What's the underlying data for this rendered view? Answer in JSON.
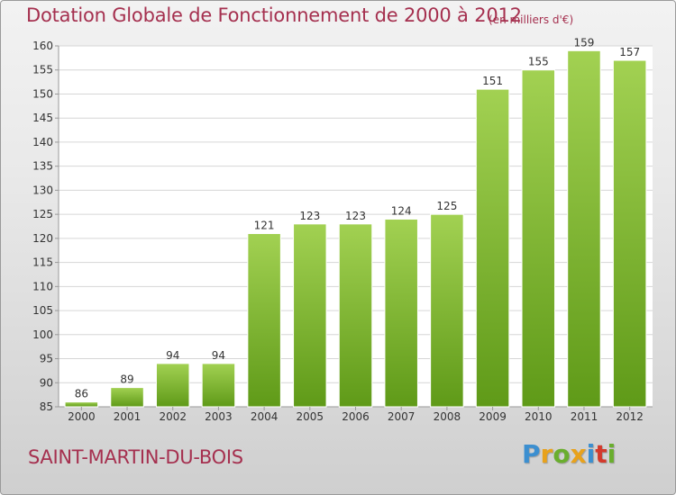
{
  "header": {
    "title": "Dotation Globale de Fonctionnement de 2000 à 2012",
    "unit": "(en milliers d'€)"
  },
  "footer": {
    "commune": "SAINT-MARTIN-DU-BOIS",
    "logo_text": "Proxiti",
    "logo_letters": [
      {
        "char": "P",
        "color": "#3c8fd0"
      },
      {
        "char": "r",
        "color": "#e8a21c"
      },
      {
        "char": "o",
        "color": "#6aae2e"
      },
      {
        "char": "x",
        "color": "#e8a21c"
      },
      {
        "char": "i",
        "color": "#3c8fd0"
      },
      {
        "char": "t",
        "color": "#d33a2c"
      },
      {
        "char": "i",
        "color": "#6aae2e"
      }
    ]
  },
  "colors": {
    "title": "#a5304f",
    "bar_top": "#a2d152",
    "bar_bottom": "#5f9a18",
    "grid": "#d6d6d6",
    "axis_text": "#333333"
  },
  "chart_data": {
    "type": "bar",
    "title": "Dotation Globale de Fonctionnement de 2000 à 2012",
    "subtitle": "(en milliers d'€)",
    "categories": [
      "2000",
      "2001",
      "2002",
      "2003",
      "2004",
      "2005",
      "2006",
      "2007",
      "2008",
      "2009",
      "2010",
      "2011",
      "2012"
    ],
    "values": [
      86,
      89,
      94,
      94,
      121,
      123,
      123,
      124,
      125,
      151,
      155,
      159,
      157
    ],
    "ylim": [
      85,
      160
    ],
    "yticks": [
      85,
      90,
      95,
      100,
      105,
      110,
      115,
      120,
      125,
      130,
      135,
      140,
      145,
      150,
      155,
      160
    ],
    "grid": true,
    "legend": "none",
    "data_labels": true
  }
}
